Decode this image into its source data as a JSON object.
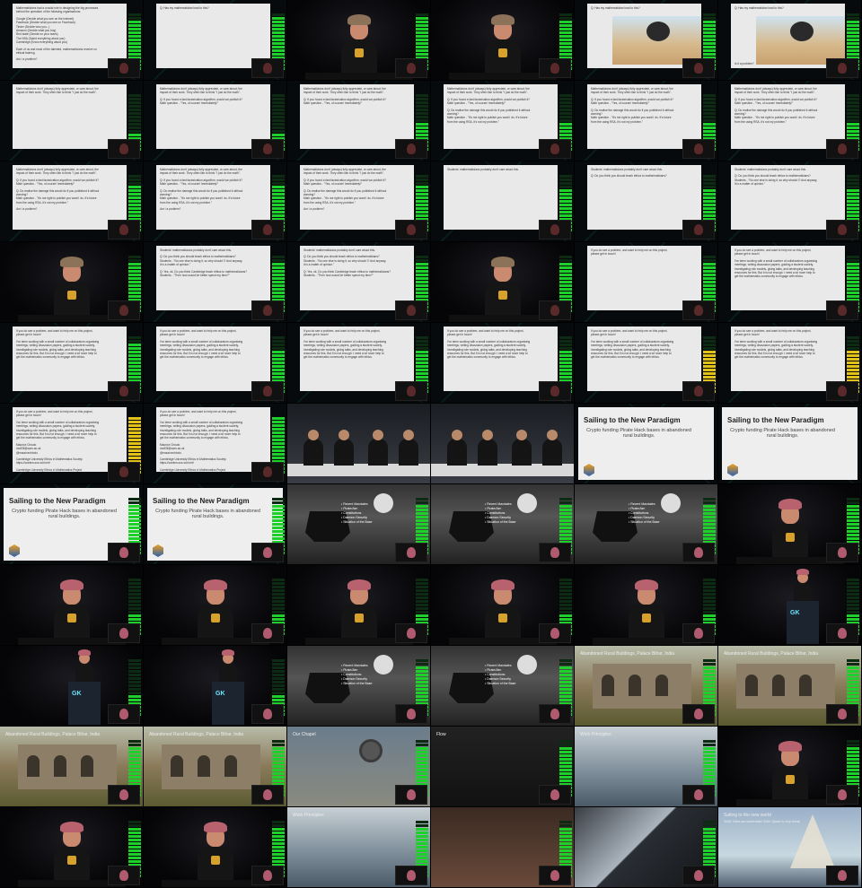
{
  "video_grid": {
    "columns": 6,
    "rows": 11,
    "slide_texts": {
      "intro_list": [
        "Mathematicians had a crucial role in designing the big processes",
        "behind the operation of the following organisations:",
        "",
        "Google (Decide what you see on the internet)",
        "Facebook (Decide what you see on Facebook)",
        "Tinder (Decide who you...)",
        "Amazon (Decide what you buy)",
        "Red state (Decide on your taxes)",
        "The NSA (Spied everything about you)",
        "Cambridge (Know everything about you)",
        "",
        "Each of us and most of the talented, mathematicians receive no",
        "ethical training.",
        "",
        "Am I a problem?"
      ],
      "is_problem_title": "Q: Has my mathematician lead to this?",
      "is_problem_tail": "Is it a problem?",
      "dont_talk": [
        "Mathematicians don't (always) fully appreciate, or care about, the",
        "impact of their work. They often like to think \"I just do the math\"."
      ],
      "q_perfect": [
        "Q: If you found a fast factorization algorithm, would we publish it?",
        "Math question - \"Yes, of course! Immediately!\""
      ],
      "q_damage": [
        "Q: Do realise the damage this would do if you published it without",
        "warning?",
        "Math question - \"It's not right to publish you want I do. It's future",
        "from the using RSA, it's not my problem.\""
      ],
      "is_problem_q": "Am I a problem?",
      "students": "Students' mathematicians probably don't care about this.",
      "ethics_q": "Q: Do you think you should teach ethics to mathematicians?",
      "ethics_a": [
        "Students - \"No one else is doing it, so why should I? And anyway,",
        "it is a matter of opinion.\""
      ],
      "teach_q": [
        "Q: Yes, ok. Do you think Cambridge teach ethics to mathematicians?",
        "Students - \"Then how would be better spend my time?\""
      ],
      "doing_title": [
        "If you do see a problem, and want to help me on this project,",
        "please get in touch!"
      ],
      "doing_body": [
        "I've been working with a small number of collaborators organising",
        "meetings, writing discussion papers, guiding a student society,",
        "investigating role models, giving talks, and developing teaching",
        "resources for this. But it is not enough. I need a lot more help to",
        "get the mathematics community to engage with ethics."
      ],
      "contacts": [
        "Maurice Chiodo",
        "mc838@cam.ac.uk",
        "@mauricechiodo",
        "",
        "Cambridge University Ethics in Mathematics Society",
        "https://cueims.soc.srcf.net/",
        "",
        "Cambridge University Ethics in Mathematics Project",
        "https://www.ethics.maths.cam.ac.uk/"
      ],
      "sailing_title": "Sailing to the New Paradigm",
      "sailing_sub": "Crypto funding Pirate Hack bases in abandoned rural buildings.",
      "ship_list": [
        "Recent Mandates",
        "Pirate/Aim",
        "Constitutions",
        "Daemon Security",
        "Situation of the Base"
      ],
      "ruins_caption": "Abandoned Rural Buildings, Palace Bihar, India",
      "chapel_caption": "Our Chapel",
      "flow_caption": "Flow",
      "work_caption": "Work Principles",
      "new_world_caption": "Sailing to the new world",
      "new_world_sub": [
        "2048: Cities are underwater",
        "2064: Space is very cheap"
      ]
    },
    "podium_brand": "GK"
  }
}
